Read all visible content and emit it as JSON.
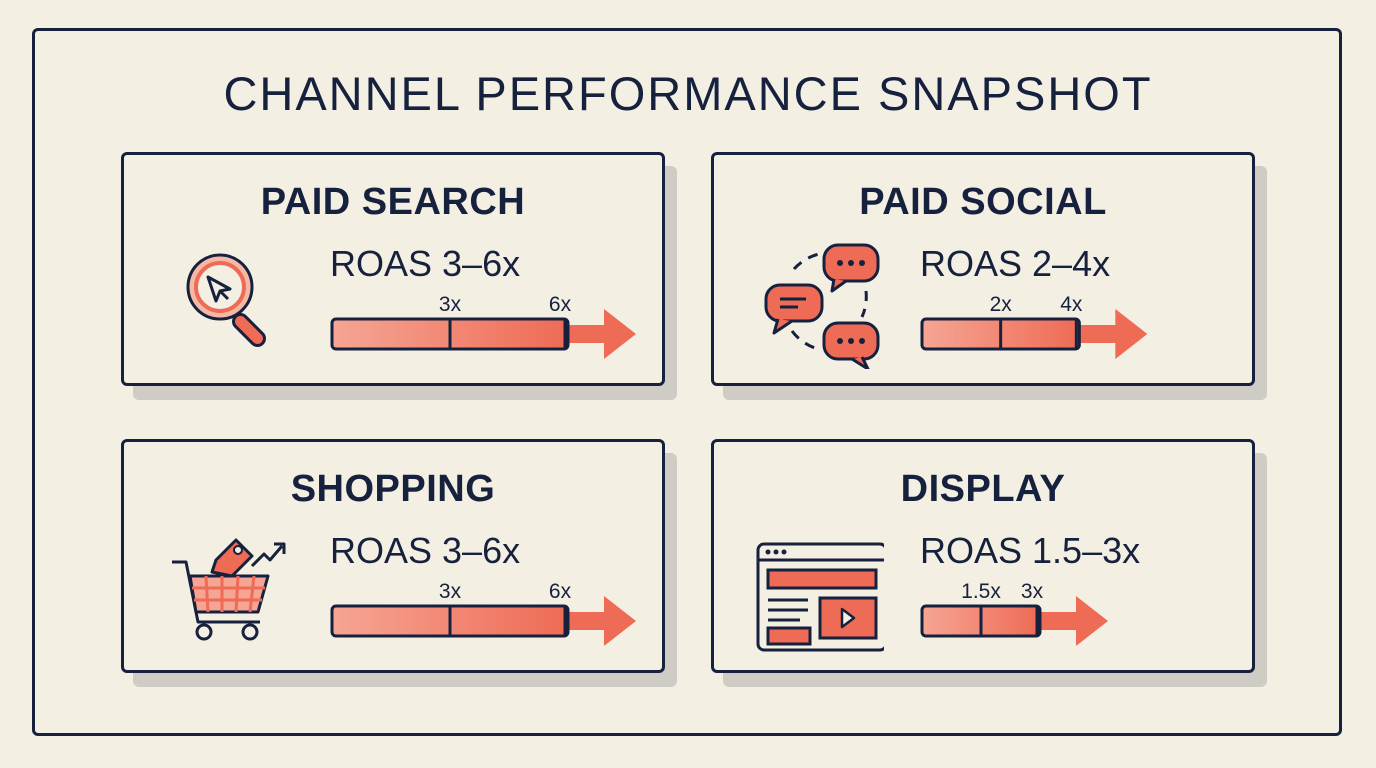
{
  "title": "CHANNEL PERFORMANCE SNAPSHOT",
  "colors": {
    "ink": "#16213d",
    "accent": "#ee6b55",
    "accent_light": "#f6a594",
    "background": "#f4efe3"
  },
  "cards": [
    {
      "name": "PAID SEARCH",
      "icon": "magnifier-cursor-icon",
      "roas_label": "ROAS 3–6x",
      "low_label": "3x",
      "high_label": "6x",
      "low": 3,
      "high": 6
    },
    {
      "name": "PAID SOCIAL",
      "icon": "chat-bubbles-icon",
      "roas_label": "ROAS 2–4x",
      "low_label": "2x",
      "high_label": "4x",
      "low": 2,
      "high": 4
    },
    {
      "name": "SHOPPING",
      "icon": "shopping-cart-tag-icon",
      "roas_label": "ROAS 3–6x",
      "low_label": "3x",
      "high_label": "6x",
      "low": 3,
      "high": 6
    },
    {
      "name": "DISPLAY",
      "icon": "browser-display-ad-icon",
      "roas_label": "ROAS 1.5–3x",
      "low_label": "1.5x",
      "high_label": "3x",
      "low": 1.5,
      "high": 3
    }
  ]
}
